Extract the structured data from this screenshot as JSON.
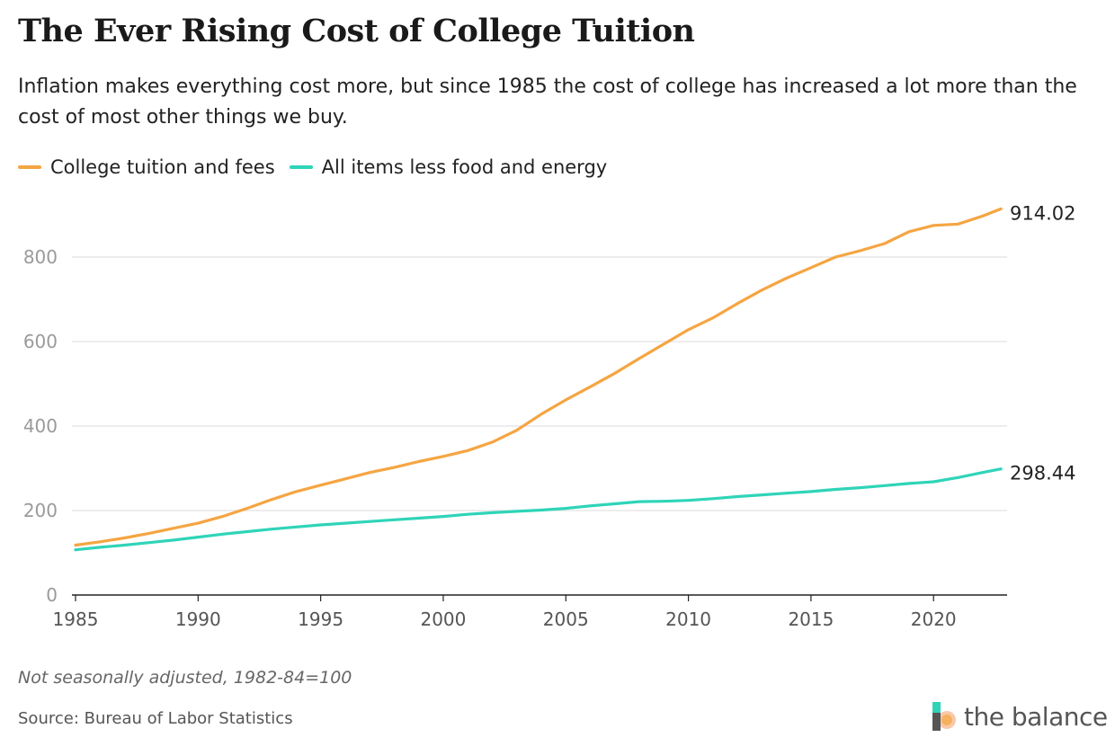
{
  "header": {
    "title": "The Ever Rising Cost of College Tuition",
    "subtitle": "Inflation makes everything cost more, but since 1985 the cost of college has increased a lot more than the cost of most other things we buy."
  },
  "legend": [
    {
      "label": "College tuition and fees",
      "color": "#f5a542"
    },
    {
      "label": "All items less food and energy",
      "color": "#2fd4b8"
    }
  ],
  "chart_data": {
    "type": "line",
    "title": "The Ever Rising Cost of College Tuition",
    "xlabel": "",
    "ylabel": "",
    "xlim": [
      1985,
      2023
    ],
    "ylim": [
      0,
      950
    ],
    "x_ticks": [
      1985,
      1990,
      1995,
      2000,
      2005,
      2010,
      2015,
      2020
    ],
    "y_ticks": [
      0,
      200,
      400,
      600,
      800
    ],
    "grid": true,
    "series": [
      {
        "name": "College tuition and fees",
        "color": "#f5a542",
        "end_label": "914.02",
        "x": [
          1985,
          1986,
          1987,
          1988,
          1989,
          1990,
          1991,
          1992,
          1993,
          1994,
          1995,
          1996,
          1997,
          1998,
          1999,
          2000,
          2001,
          2002,
          2003,
          2004,
          2005,
          2006,
          2007,
          2008,
          2009,
          2010,
          2011,
          2012,
          2013,
          2014,
          2015,
          2016,
          2017,
          2018,
          2019,
          2020,
          2021,
          2022,
          2022.75
        ],
        "y": [
          118,
          126,
          135,
          146,
          158,
          170,
          186,
          205,
          226,
          245,
          260,
          275,
          290,
          302,
          316,
          328,
          342,
          362,
          390,
          428,
          462,
          493,
          525,
          560,
          594,
          628,
          656,
          690,
          722,
          750,
          775,
          800,
          815,
          832,
          860,
          875,
          878,
          897,
          914.02
        ]
      },
      {
        "name": "All items less food and energy",
        "color": "#2fd4b8",
        "end_label": "298.44",
        "x": [
          1985,
          1986,
          1987,
          1988,
          1989,
          1990,
          1991,
          1992,
          1993,
          1994,
          1995,
          1996,
          1997,
          1998,
          1999,
          2000,
          2001,
          2002,
          2003,
          2004,
          2005,
          2006,
          2007,
          2008,
          2009,
          2010,
          2011,
          2012,
          2013,
          2014,
          2015,
          2016,
          2017,
          2018,
          2019,
          2020,
          2021,
          2022,
          2022.75
        ],
        "y": [
          107,
          113,
          118,
          124,
          130,
          137,
          144,
          150,
          156,
          161,
          166,
          170,
          174,
          178,
          182,
          186,
          191,
          195,
          198,
          201,
          205,
          211,
          216,
          221,
          222,
          224,
          228,
          233,
          237,
          241,
          245,
          250,
          254,
          259,
          264,
          268,
          278,
          290,
          298.44
        ]
      }
    ]
  },
  "footer": {
    "note": "Not seasonally adjusted, 1982-84=100",
    "source": "Source: Bureau of Labor Statistics",
    "brand": "the balance"
  }
}
